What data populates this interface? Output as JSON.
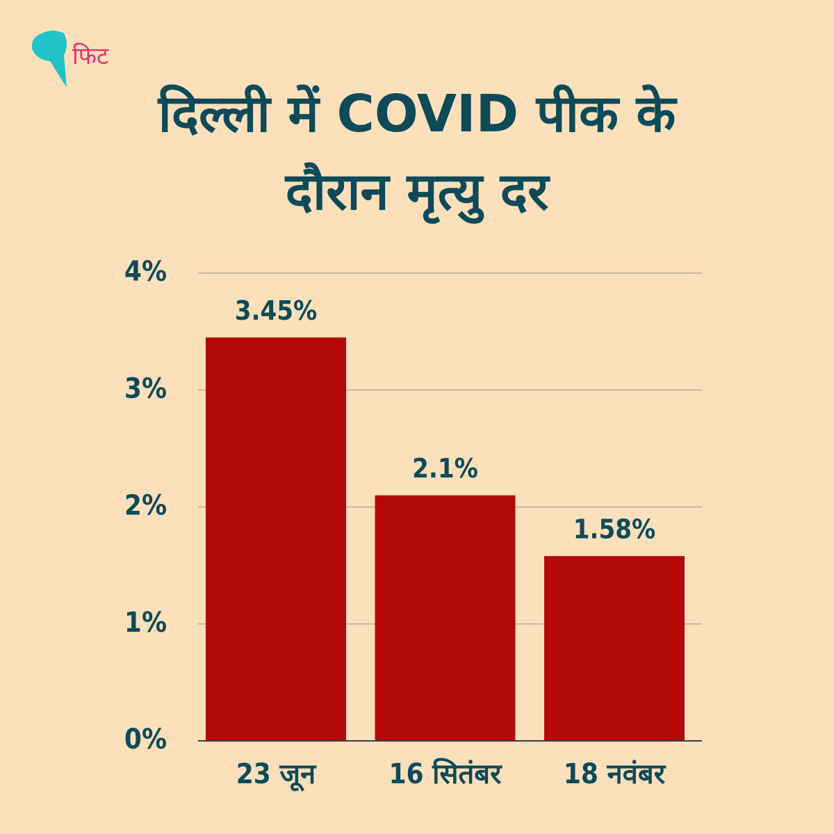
{
  "brand": "फिट",
  "chart_data": {
    "type": "bar",
    "title": "दिल्ली में COVID पीक के दौरान मृत्यु दर",
    "categories": [
      "23 जून",
      "16 सितंबर",
      "18 नवंबर"
    ],
    "values": [
      3.45,
      2.1,
      1.58
    ],
    "value_labels": [
      "3.45%",
      "2.1%",
      "1.58%"
    ],
    "color": "#b30a08",
    "ylim": [
      0,
      4
    ],
    "yticks": [
      {
        "value": 0,
        "label": "0%"
      },
      {
        "value": 1,
        "label": "1%"
      },
      {
        "value": 2,
        "label": "2%"
      },
      {
        "value": 3,
        "label": "3%"
      },
      {
        "value": 4,
        "label": "4%"
      }
    ],
    "grid": true
  }
}
